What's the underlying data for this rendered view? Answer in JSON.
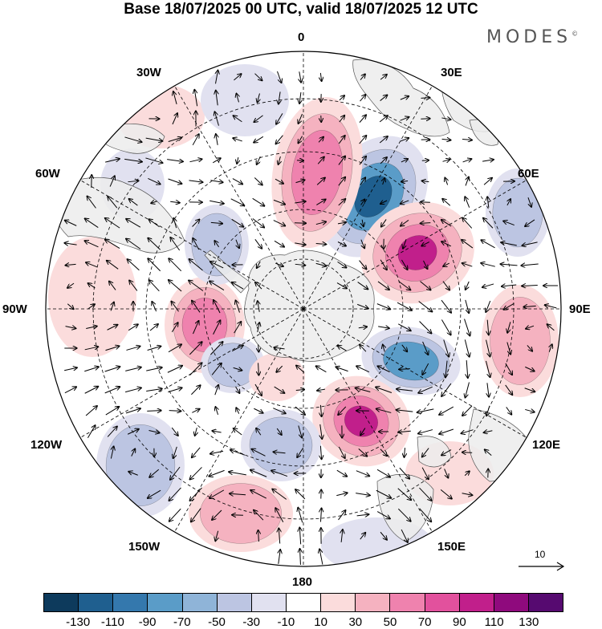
{
  "title": "Base 18/07/2025 00 UTC, valid 18/07/2025 12 UTC",
  "brand": "MODES",
  "brand_mark": "©",
  "longitude_labels": {
    "lon_0": "0",
    "lon_30e": "30E",
    "lon_60e": "60E",
    "lon_90e": "90E",
    "lon_120e": "120E",
    "lon_150e": "150E",
    "lon_180": "180",
    "lon_150w": "150W",
    "lon_120w": "120W",
    "lon_90w": "90W",
    "lon_60w": "60W",
    "lon_30w": "30W"
  },
  "vector_scale": {
    "label": "10"
  },
  "colorbar": {
    "colors": [
      "#0d3a5c",
      "#1f5f8f",
      "#3478ad",
      "#5a9cc8",
      "#8fb4d8",
      "#bcc5e2",
      "#e1e1f0",
      "#ffffff",
      "#fbdcdc",
      "#f5b2c0",
      "#ef82ae",
      "#e2519d",
      "#c11f8b",
      "#8f0a7d",
      "#560a70"
    ],
    "tick_labels": [
      "-130",
      "-110",
      "-90",
      "-70",
      "-50",
      "-30",
      "-10",
      "10",
      "30",
      "50",
      "70",
      "90",
      "110",
      "130"
    ]
  },
  "field_colors": {
    "neg_strong": "#1f5f8f",
    "neg_mid": "#5a9cc8",
    "neg_weak": "#bcc5e2",
    "neg_faint": "#e1e1f0",
    "pos_faint": "#fbdcdc",
    "pos_weak": "#f5b2c0",
    "pos_mid": "#ef82ae",
    "pos_strong": "#c11f8b",
    "land": "#ececec"
  }
}
